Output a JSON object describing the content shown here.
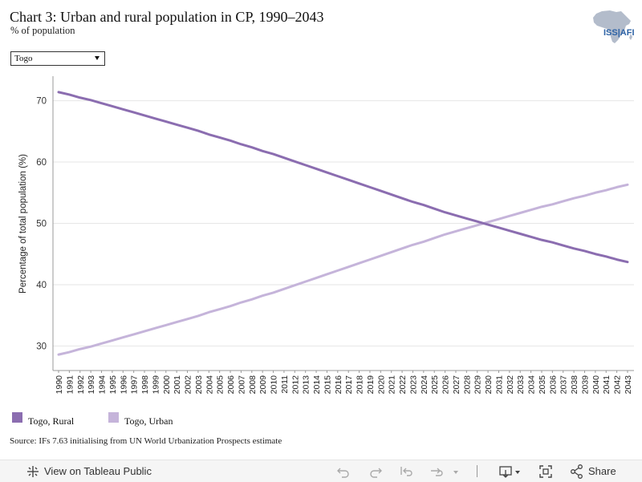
{
  "header": {
    "title": "Chart 3: Urban and rural population in CP, 1990–2043",
    "subtitle": "% of population"
  },
  "logo": {
    "text": "ISS|AFI"
  },
  "filter": {
    "selected": "Togo"
  },
  "colors": {
    "rural": "#8B6DB0",
    "urban": "#C5B4DA",
    "grid": "#e6e6e6",
    "axis": "#999999"
  },
  "chart_data": {
    "type": "line",
    "ylabel": "Percentage of total population (%)",
    "xlabel": "",
    "xlim": [
      1990,
      2043
    ],
    "ylim": [
      26,
      74
    ],
    "yticks": [
      30,
      40,
      50,
      60,
      70
    ],
    "x": [
      1990,
      1991,
      1992,
      1993,
      1994,
      1995,
      1996,
      1997,
      1998,
      1999,
      2000,
      2001,
      2002,
      2003,
      2004,
      2005,
      2006,
      2007,
      2008,
      2009,
      2010,
      2011,
      2012,
      2013,
      2014,
      2015,
      2016,
      2017,
      2018,
      2019,
      2020,
      2021,
      2022,
      2023,
      2024,
      2025,
      2026,
      2027,
      2028,
      2029,
      2030,
      2031,
      2032,
      2033,
      2034,
      2035,
      2036,
      2037,
      2038,
      2039,
      2040,
      2041,
      2042,
      2043
    ],
    "grid": true,
    "legend_position": "bottom-left",
    "series": [
      {
        "name": "Togo, Rural",
        "color": "#8B6DB0",
        "values": [
          71.4,
          71.0,
          70.5,
          70.1,
          69.6,
          69.1,
          68.6,
          68.1,
          67.6,
          67.1,
          66.6,
          66.1,
          65.6,
          65.1,
          64.5,
          64.0,
          63.5,
          62.9,
          62.4,
          61.8,
          61.3,
          60.7,
          60.1,
          59.5,
          58.9,
          58.3,
          57.7,
          57.1,
          56.5,
          55.9,
          55.3,
          54.7,
          54.1,
          53.5,
          53.0,
          52.4,
          51.8,
          51.3,
          50.8,
          50.3,
          49.8,
          49.3,
          48.8,
          48.3,
          47.8,
          47.3,
          46.9,
          46.4,
          45.9,
          45.5,
          45.0,
          44.6,
          44.1,
          43.7
        ]
      },
      {
        "name": "Togo, Urban",
        "color": "#C5B4DA",
        "values": [
          28.6,
          29.0,
          29.5,
          29.9,
          30.4,
          30.9,
          31.4,
          31.9,
          32.4,
          32.9,
          33.4,
          33.9,
          34.4,
          34.9,
          35.5,
          36.0,
          36.5,
          37.1,
          37.6,
          38.2,
          38.7,
          39.3,
          39.9,
          40.5,
          41.1,
          41.7,
          42.3,
          42.9,
          43.5,
          44.1,
          44.7,
          45.3,
          45.9,
          46.5,
          47.0,
          47.6,
          48.2,
          48.7,
          49.2,
          49.7,
          50.2,
          50.7,
          51.2,
          51.7,
          52.2,
          52.7,
          53.1,
          53.6,
          54.1,
          54.5,
          55.0,
          55.4,
          55.9,
          56.3
        ]
      }
    ]
  },
  "source": {
    "text": "Source: IFs 7.63 initialising from UN World Urbanization Prospects estimate"
  },
  "toolbar": {
    "view_label": "View on Tableau Public",
    "share_label": "Share"
  }
}
